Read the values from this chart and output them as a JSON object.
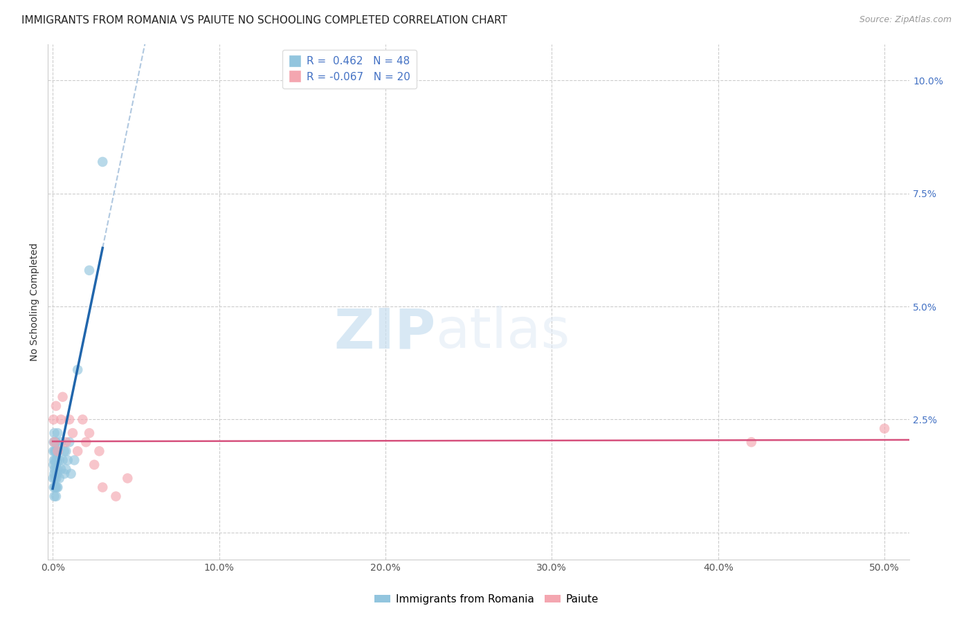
{
  "title": "IMMIGRANTS FROM ROMANIA VS PAIUTE NO SCHOOLING COMPLETED CORRELATION CHART",
  "source": "Source: ZipAtlas.com",
  "ylabel": "No Schooling Completed",
  "xlim": [
    -0.003,
    0.515
  ],
  "ylim": [
    -0.006,
    0.108
  ],
  "legend_label1": "Immigrants from Romania",
  "legend_label2": "Paiute",
  "R1": 0.462,
  "N1": 48,
  "R2": -0.067,
  "N2": 20,
  "romania_color": "#92c5de",
  "paiute_color": "#f4a6b0",
  "romania_line_color": "#2166ac",
  "paiute_line_color": "#d6517d",
  "dashed_line_color": "#b0c8e0",
  "background_color": "#ffffff",
  "grid_color": "#cccccc",
  "romania_x": [
    0.0003,
    0.0004,
    0.0005,
    0.0006,
    0.0007,
    0.0008,
    0.0009,
    0.001,
    0.001,
    0.0011,
    0.0012,
    0.0013,
    0.0014,
    0.0015,
    0.0015,
    0.0016,
    0.0017,
    0.0018,
    0.0019,
    0.002,
    0.002,
    0.002,
    0.0022,
    0.0023,
    0.0024,
    0.0025,
    0.0026,
    0.0027,
    0.003,
    0.003,
    0.003,
    0.003,
    0.004,
    0.004,
    0.005,
    0.005,
    0.006,
    0.007,
    0.007,
    0.008,
    0.008,
    0.009,
    0.01,
    0.011,
    0.013,
    0.015,
    0.022,
    0.03
  ],
  "romania_y": [
    0.012,
    0.018,
    0.015,
    0.02,
    0.01,
    0.016,
    0.013,
    0.008,
    0.022,
    0.014,
    0.018,
    0.012,
    0.01,
    0.016,
    0.02,
    0.013,
    0.018,
    0.01,
    0.015,
    0.008,
    0.014,
    0.02,
    0.012,
    0.016,
    0.01,
    0.018,
    0.013,
    0.016,
    0.01,
    0.014,
    0.018,
    0.022,
    0.012,
    0.016,
    0.014,
    0.02,
    0.016,
    0.013,
    0.018,
    0.014,
    0.018,
    0.016,
    0.02,
    0.013,
    0.016,
    0.036,
    0.058,
    0.082
  ],
  "paiute_x": [
    0.0005,
    0.001,
    0.002,
    0.003,
    0.005,
    0.006,
    0.008,
    0.01,
    0.012,
    0.015,
    0.018,
    0.02,
    0.022,
    0.025,
    0.028,
    0.03,
    0.038,
    0.045,
    0.42,
    0.5
  ],
  "paiute_y": [
    0.025,
    0.02,
    0.028,
    0.018,
    0.025,
    0.03,
    0.02,
    0.025,
    0.022,
    0.018,
    0.025,
    0.02,
    0.022,
    0.015,
    0.018,
    0.01,
    0.008,
    0.012,
    0.02,
    0.023
  ],
  "watermark_zip": "ZIP",
  "watermark_atlas": "atlas",
  "title_fontsize": 11,
  "label_fontsize": 10,
  "tick_fontsize": 10,
  "legend_fontsize": 11
}
